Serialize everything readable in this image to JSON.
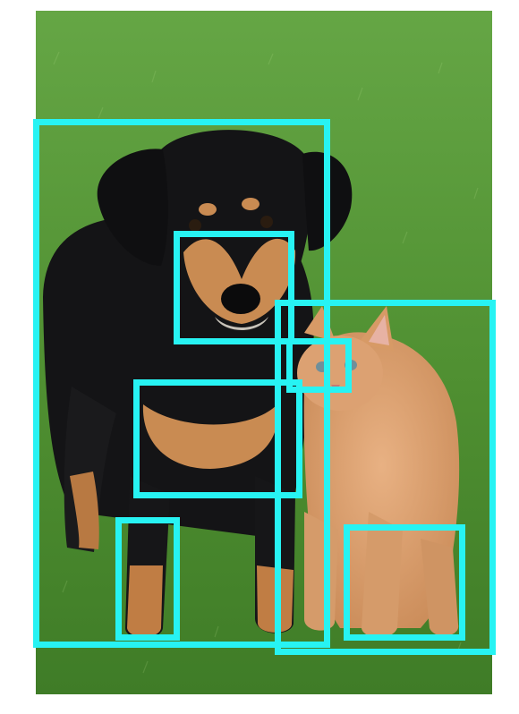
{
  "scene": {
    "subjects": [
      "dog",
      "kitten"
    ],
    "background": "grass"
  },
  "colors": {
    "box_stroke": "#27f3f3",
    "grass": "#4e8f2f",
    "dog_black": "#141416",
    "dog_tan": "#c9874e",
    "kitten_orange": "#d9a070"
  }
}
